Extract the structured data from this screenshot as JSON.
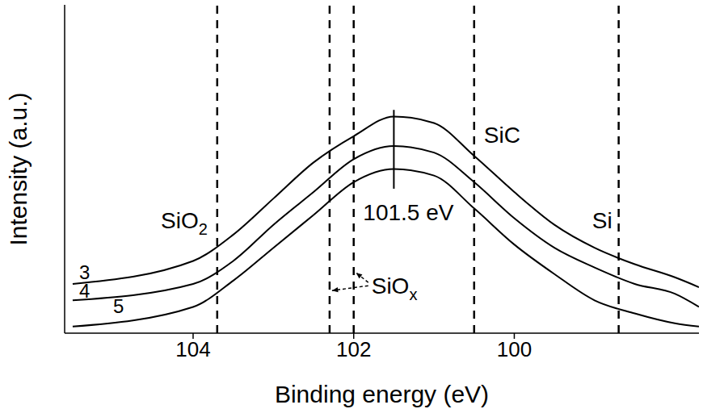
{
  "chart_data": {
    "type": "line",
    "xlabel": "Binding energy (eV)",
    "ylabel": "Intensity (a.u.)",
    "x": [
      105.5,
      104,
      103.5,
      103,
      102.5,
      102,
      101.5,
      101,
      100.5,
      100,
      99.5,
      99,
      98.5,
      98,
      97.7
    ],
    "xlim": [
      105.6,
      97.7
    ],
    "xticks": [
      104,
      102,
      100
    ],
    "ylim": [
      0,
      100
    ],
    "tick_labels": "x",
    "grid": false,
    "series": [
      {
        "name": "3",
        "color": "#000000",
        "values": [
          15,
          22,
          30,
          41,
          52,
          60,
          66,
          64,
          54,
          43,
          33,
          26,
          21,
          17,
          14
        ]
      },
      {
        "name": "4",
        "color": "#000000",
        "values": [
          10,
          15,
          22,
          33,
          43,
          53,
          57,
          55,
          46,
          35,
          26,
          20,
          15,
          12,
          8
        ]
      },
      {
        "name": "5",
        "color": "#000000",
        "values": [
          2,
          8,
          16,
          26,
          36,
          46,
          50,
          48,
          38,
          27,
          18,
          10,
          6,
          3,
          2
        ]
      }
    ],
    "references": [
      {
        "label": "SiO2",
        "x": [
          103.7
        ]
      },
      {
        "label": "SiOx",
        "x": [
          102.3,
          102.0
        ]
      },
      {
        "label": "SiC",
        "x": [
          100.5
        ]
      },
      {
        "label": "Si",
        "x": [
          98.7
        ]
      }
    ],
    "peak": {
      "x": 101.5,
      "y": [
        44,
        68
      ],
      "label": "101.5 eV"
    }
  }
}
